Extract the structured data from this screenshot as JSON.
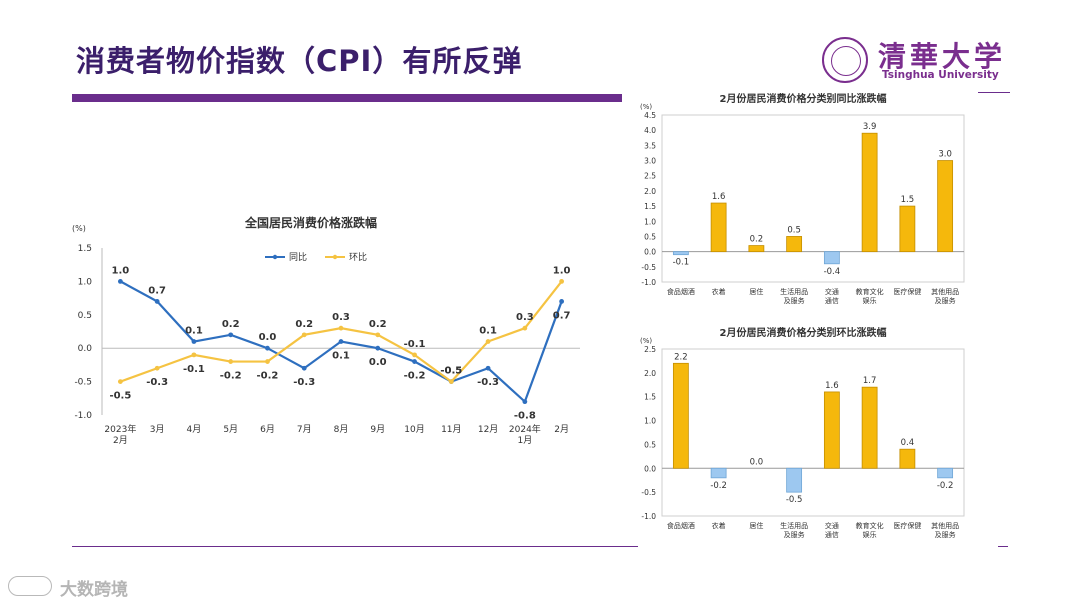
{
  "slide": {
    "title": "消费者物价指数（CPI）有所反弹",
    "logo_cn": "清華大学",
    "logo_en": "Tsinghua University",
    "watermark": "大数跨境"
  },
  "colors": {
    "accent": "#6a2d8c",
    "line_yoy": "#2e6fbf",
    "line_mom": "#f5c342",
    "bar_pos": "#f5b80c",
    "bar_neg": "#9dc8f0"
  },
  "chart_data": [
    {
      "type": "line",
      "title": "全国居民消费价格涨跌幅",
      "unit": "(%)",
      "categories": [
        "2023年\n2月",
        "3月",
        "4月",
        "5月",
        "6月",
        "7月",
        "8月",
        "9月",
        "10月",
        "11月",
        "12月",
        "2024年\n1月",
        "2月"
      ],
      "series": [
        {
          "name": "同比",
          "values": [
            1.0,
            0.7,
            0.1,
            0.2,
            0.0,
            -0.3,
            0.1,
            0.0,
            -0.2,
            -0.5,
            -0.3,
            -0.8,
            0.7
          ]
        },
        {
          "name": "环比",
          "values": [
            -0.5,
            -0.3,
            -0.1,
            -0.2,
            -0.2,
            0.2,
            0.3,
            0.2,
            -0.1,
            -0.5,
            0.1,
            0.3,
            1.0
          ]
        }
      ],
      "yticks": [
        "1.5",
        "1.0",
        "0.5",
        "0.0",
        "-0.5",
        "-1.0"
      ],
      "ylim": [
        -1.0,
        1.5
      ],
      "legend": "top"
    },
    {
      "type": "bar",
      "title": "2月份居民消费价格分类别同比涨跌幅",
      "unit": "(%)",
      "categories": [
        "食品烟酒",
        "衣着",
        "居住",
        "生活用品\n及服务",
        "交通\n通信",
        "教育文化\n娱乐",
        "医疗保健",
        "其他用品\n及服务"
      ],
      "values": [
        -0.1,
        1.6,
        0.2,
        0.5,
        -0.4,
        3.9,
        1.5,
        3.0
      ],
      "yticks": [
        "4.5",
        "4.0",
        "3.5",
        "3.0",
        "2.5",
        "2.0",
        "1.5",
        "1.0",
        "0.5",
        "0.0",
        "-0.5",
        "-1.0"
      ],
      "ylim": [
        -1.0,
        4.5
      ]
    },
    {
      "type": "bar",
      "title": "2月份居民消费价格分类别环比涨跌幅",
      "unit": "(%)",
      "categories": [
        "食品烟酒",
        "衣着",
        "居住",
        "生活用品\n及服务",
        "交通\n通信",
        "教育文化\n娱乐",
        "医疗保健",
        "其他用品\n及服务"
      ],
      "values": [
        2.2,
        -0.2,
        0.0,
        -0.5,
        1.6,
        1.7,
        0.4,
        -0.2
      ],
      "yticks": [
        "2.5",
        "2.0",
        "1.5",
        "1.0",
        "0.5",
        "0.0",
        "-0.5",
        "-1.0"
      ],
      "ylim": [
        -1.0,
        2.5
      ]
    }
  ]
}
